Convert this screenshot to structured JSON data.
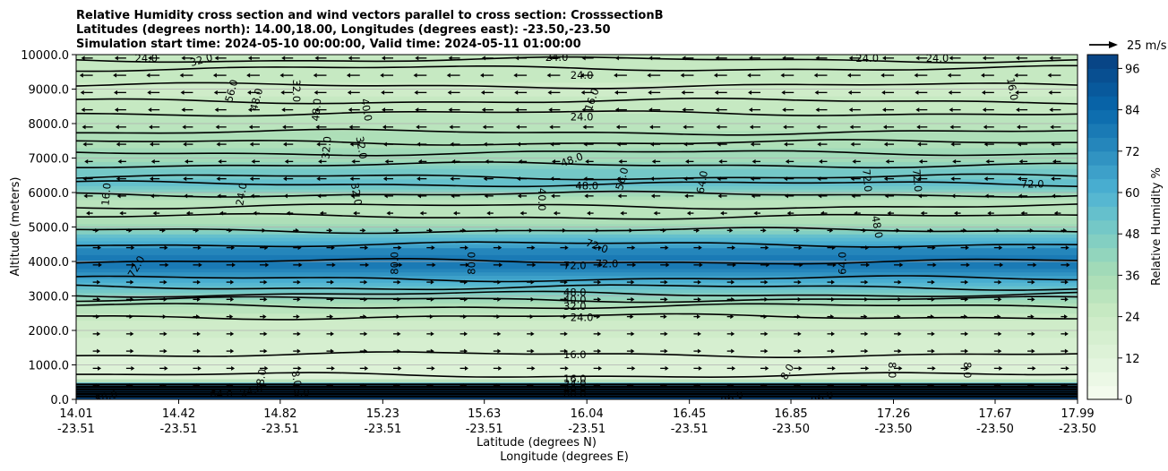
{
  "chart_data": {
    "type": "contour",
    "title_lines": [
      "Relative Humidity cross section and wind vectors parallel to cross section: CrosssectionB",
      "Latitudes (degrees north): 14.00,18.00, Longitudes (degrees east): -23.50,-23.50",
      "Simulation start time: 2024-05-10 00:00:00, Valid time: 2024-05-11 01:00:00"
    ],
    "ylabel": "Altitude (meters)",
    "xlabel_lat": "Latitude (degrees N)",
    "xlabel_lon": "Longitude (degrees E)",
    "ylim": [
      0,
      10000
    ],
    "y_ticks": [
      {
        "value": 0,
        "label": "0.0"
      },
      {
        "value": 1000,
        "label": "1000.0"
      },
      {
        "value": 2000,
        "label": "2000.0"
      },
      {
        "value": 3000,
        "label": "3000.0"
      },
      {
        "value": 4000,
        "label": "4000.0"
      },
      {
        "value": 5000,
        "label": "5000.0"
      },
      {
        "value": 6000,
        "label": "6000.0"
      },
      {
        "value": 7000,
        "label": "7000.0"
      },
      {
        "value": 8000,
        "label": "8000.0"
      },
      {
        "value": 9000,
        "label": "9000.0"
      },
      {
        "value": 10000,
        "label": "10000.0"
      }
    ],
    "x_range": [
      0,
      1
    ],
    "x_ticks": [
      {
        "pos": 0.0,
        "lat": "14.01",
        "lon": "-23.51"
      },
      {
        "pos": 0.1024,
        "lat": "14.42",
        "lon": "-23.51"
      },
      {
        "pos": 0.2038,
        "lat": "14.82",
        "lon": "-23.51"
      },
      {
        "pos": 0.3062,
        "lat": "15.23",
        "lon": "-23.51"
      },
      {
        "pos": 0.4076,
        "lat": "15.63",
        "lon": "-23.51"
      },
      {
        "pos": 0.51,
        "lat": "16.04",
        "lon": "-23.51"
      },
      {
        "pos": 0.6124,
        "lat": "16.45",
        "lon": "-23.51"
      },
      {
        "pos": 0.7138,
        "lat": "16.85",
        "lon": "-23.50"
      },
      {
        "pos": 0.8162,
        "lat": "17.26",
        "lon": "-23.50"
      },
      {
        "pos": 0.9177,
        "lat": "17.67",
        "lon": "-23.50"
      },
      {
        "pos": 1.0,
        "lat": "17.99",
        "lon": "-23.50"
      }
    ],
    "colorbar": {
      "label": "Relative Humidity %",
      "min": 0,
      "max": 100,
      "step": 4,
      "tick_values": [
        0,
        12,
        24,
        36,
        48,
        60,
        72,
        84,
        96
      ],
      "tick_labels": [
        "0",
        "12",
        "24",
        "36",
        "48",
        "60",
        "72",
        "84",
        "96"
      ]
    },
    "color_stops": [
      {
        "v": 0,
        "c": "#f7fcf0"
      },
      {
        "v": 12,
        "c": "#e0f3db"
      },
      {
        "v": 24,
        "c": "#ccebc5"
      },
      {
        "v": 36,
        "c": "#a8ddb5"
      },
      {
        "v": 48,
        "c": "#7bccc4"
      },
      {
        "v": 60,
        "c": "#4eb3d3"
      },
      {
        "v": 72,
        "c": "#2b8cbe"
      },
      {
        "v": 84,
        "c": "#0868ac"
      },
      {
        "v": 100,
        "c": "#084081"
      }
    ],
    "rh_profile": [
      {
        "alt": 0,
        "rh": 95
      },
      {
        "alt": 200,
        "rh": 93
      },
      {
        "alt": 400,
        "rh": 80
      },
      {
        "alt": 600,
        "rh": 14
      },
      {
        "alt": 1000,
        "rh": 14
      },
      {
        "alt": 1400,
        "rh": 17
      },
      {
        "alt": 2000,
        "rh": 22
      },
      {
        "alt": 2400,
        "rh": 25
      },
      {
        "alt": 2800,
        "rh": 34
      },
      {
        "alt": 3100,
        "rh": 46
      },
      {
        "alt": 3400,
        "rh": 62
      },
      {
        "alt": 3700,
        "rh": 72
      },
      {
        "alt": 4000,
        "rh": 80
      },
      {
        "alt": 4300,
        "rh": 75
      },
      {
        "alt": 4600,
        "rh": 60
      },
      {
        "alt": 5000,
        "rh": 40
      },
      {
        "alt": 5400,
        "rh": 28
      },
      {
        "alt": 5800,
        "rh": 30
      },
      {
        "alt": 6200,
        "rh": 55
      },
      {
        "alt": 6600,
        "rh": 50
      },
      {
        "alt": 7000,
        "rh": 38
      },
      {
        "alt": 7500,
        "rh": 34
      },
      {
        "alt": 8000,
        "rh": 30
      },
      {
        "alt": 8500,
        "rh": 26
      },
      {
        "alt": 9000,
        "rh": 22
      },
      {
        "alt": 9500,
        "rh": 26
      },
      {
        "alt": 10000,
        "rh": 28
      }
    ],
    "contour_lines": [
      {
        "alt": 9850,
        "label": "24.0"
      },
      {
        "alt": 9600,
        "label": "24.0"
      },
      {
        "alt": 9100,
        "label": "16.0"
      },
      {
        "alt": 8650,
        "label": "24.0"
      },
      {
        "alt": 8300,
        "label": "24.0"
      },
      {
        "alt": 7750,
        "label": "32.0"
      },
      {
        "alt": 7450,
        "label": "40.0"
      },
      {
        "alt": 7150,
        "label": "48.0"
      },
      {
        "alt": 6800,
        "label": "48.0"
      },
      {
        "alt": 6450,
        "label": "56.0"
      },
      {
        "alt": 6250,
        "label": "72.0"
      },
      {
        "alt": 5950,
        "label": "48.0"
      },
      {
        "alt": 5600,
        "label": "40.0"
      },
      {
        "alt": 5300,
        "label": "24.0"
      },
      {
        "alt": 4900,
        "label": "48.0"
      },
      {
        "alt": 4500,
        "label": "72.0"
      },
      {
        "alt": 4000,
        "label": "72.0"
      },
      {
        "alt": 3500,
        "label": "72.0"
      },
      {
        "alt": 3250,
        "label": "56.0"
      },
      {
        "alt": 3050,
        "label": "48.0"
      },
      {
        "alt": 2900,
        "label": "40.0"
      },
      {
        "alt": 2700,
        "label": "32.0"
      },
      {
        "alt": 2400,
        "label": "24.0"
      },
      {
        "alt": 1300,
        "label": "16.0"
      },
      {
        "alt": 700,
        "label": "16.0"
      }
    ],
    "contour_labels": [
      {
        "pos": 0.07,
        "alt": 9900,
        "text": "24.0",
        "rot": 0
      },
      {
        "pos": 0.125,
        "alt": 9850,
        "text": "32.0",
        "rot": -15
      },
      {
        "pos": 0.48,
        "alt": 9920,
        "text": "24.0",
        "rot": 0
      },
      {
        "pos": 0.79,
        "alt": 9900,
        "text": "24.0",
        "rot": 0
      },
      {
        "pos": 0.86,
        "alt": 9900,
        "text": "24.0",
        "rot": 0
      },
      {
        "pos": 0.505,
        "alt": 9400,
        "text": "24.0",
        "rot": 0
      },
      {
        "pos": 0.155,
        "alt": 8950,
        "text": "56.0",
        "rot": -75
      },
      {
        "pos": 0.18,
        "alt": 8700,
        "text": "48.0",
        "rot": -75
      },
      {
        "pos": 0.22,
        "alt": 8950,
        "text": "32.0",
        "rot": 90
      },
      {
        "pos": 0.24,
        "alt": 8400,
        "text": "48.0",
        "rot": -85
      },
      {
        "pos": 0.29,
        "alt": 8400,
        "text": "40.0",
        "rot": 80
      },
      {
        "pos": 0.515,
        "alt": 8700,
        "text": "16.0",
        "rot": -70
      },
      {
        "pos": 0.505,
        "alt": 8200,
        "text": "24.0",
        "rot": 0
      },
      {
        "pos": 0.935,
        "alt": 9000,
        "text": "16.0",
        "rot": 80
      },
      {
        "pos": 0.25,
        "alt": 7300,
        "text": "32.0",
        "rot": -85
      },
      {
        "pos": 0.285,
        "alt": 7300,
        "text": "32.0",
        "rot": 80
      },
      {
        "pos": 0.495,
        "alt": 6950,
        "text": "48.0",
        "rot": -20
      },
      {
        "pos": 0.51,
        "alt": 6200,
        "text": "48.0",
        "rot": 0
      },
      {
        "pos": 0.545,
        "alt": 6400,
        "text": "56.0",
        "rot": -75
      },
      {
        "pos": 0.625,
        "alt": 6300,
        "text": "64.0",
        "rot": -80
      },
      {
        "pos": 0.79,
        "alt": 6350,
        "text": "72.0",
        "rot": 85
      },
      {
        "pos": 0.84,
        "alt": 6350,
        "text": "72.0",
        "rot": 85
      },
      {
        "pos": 0.955,
        "alt": 6250,
        "text": "72.0",
        "rot": 0
      },
      {
        "pos": 0.03,
        "alt": 5950,
        "text": "16.0",
        "rot": -85
      },
      {
        "pos": 0.165,
        "alt": 5950,
        "text": "24.0",
        "rot": -80
      },
      {
        "pos": 0.28,
        "alt": 5950,
        "text": "32.0",
        "rot": 80
      },
      {
        "pos": 0.465,
        "alt": 5800,
        "text": "40.0",
        "rot": 90
      },
      {
        "pos": 0.8,
        "alt": 5000,
        "text": "48.0",
        "rot": 80
      },
      {
        "pos": 0.52,
        "alt": 4450,
        "text": "72.0",
        "rot": 20
      },
      {
        "pos": 0.06,
        "alt": 3850,
        "text": "72.0",
        "rot": -60
      },
      {
        "pos": 0.318,
        "alt": 3950,
        "text": "80.0",
        "rot": -90
      },
      {
        "pos": 0.395,
        "alt": 3950,
        "text": "80.0",
        "rot": -90
      },
      {
        "pos": 0.498,
        "alt": 3880,
        "text": "72.0",
        "rot": 0
      },
      {
        "pos": 0.53,
        "alt": 3930,
        "text": "72.0",
        "rot": 0
      },
      {
        "pos": 0.765,
        "alt": 3950,
        "text": "64.0",
        "rot": -90
      },
      {
        "pos": 0.498,
        "alt": 3100,
        "text": "48.0",
        "rot": 0
      },
      {
        "pos": 0.498,
        "alt": 2900,
        "text": "40.0",
        "rot": 0
      },
      {
        "pos": 0.498,
        "alt": 2700,
        "text": "32.0",
        "rot": 0
      },
      {
        "pos": 0.505,
        "alt": 2380,
        "text": "24.0",
        "rot": 0
      },
      {
        "pos": 0.498,
        "alt": 1300,
        "text": "16.0",
        "rot": 0
      },
      {
        "pos": 0.498,
        "alt": 600,
        "text": "16.0",
        "rot": 0
      },
      {
        "pos": 0.498,
        "alt": 450,
        "text": "24.0",
        "rot": 0
      },
      {
        "pos": 0.498,
        "alt": 300,
        "text": "40.0",
        "rot": 0
      },
      {
        "pos": 0.498,
        "alt": 150,
        "text": "80.0",
        "rot": 0
      },
      {
        "pos": 0.185,
        "alt": 650,
        "text": "8.0",
        "rot": -80
      },
      {
        "pos": 0.22,
        "alt": 600,
        "text": "8.0",
        "rot": 80
      },
      {
        "pos": 0.225,
        "alt": 200,
        "text": "8.0",
        "rot": 0
      },
      {
        "pos": 0.145,
        "alt": 150,
        "text": "64.0",
        "rot": 0
      },
      {
        "pos": 0.175,
        "alt": 250,
        "text": "24.0",
        "rot": -15
      },
      {
        "pos": 0.03,
        "alt": 80,
        "text": "88.0",
        "rot": -15
      },
      {
        "pos": 0.71,
        "alt": 800,
        "text": "8.0",
        "rot": -60
      },
      {
        "pos": 0.815,
        "alt": 850,
        "text": "8.0",
        "rot": 90
      },
      {
        "pos": 0.89,
        "alt": 850,
        "text": "8.0",
        "rot": 90
      },
      {
        "pos": 0.655,
        "alt": 50,
        "text": "96.0",
        "rot": -20
      },
      {
        "pos": 0.745,
        "alt": 50,
        "text": "96.0",
        "rot": -20
      }
    ],
    "wind_rows": [
      {
        "alt": 9900,
        "dir": -1,
        "mag": 10
      },
      {
        "alt": 9400,
        "dir": -1,
        "mag": 12
      },
      {
        "alt": 8900,
        "dir": -1,
        "mag": 11
      },
      {
        "alt": 8400,
        "dir": -1,
        "mag": 10
      },
      {
        "alt": 7900,
        "dir": -1,
        "mag": 9
      },
      {
        "alt": 7400,
        "dir": -1,
        "mag": 8
      },
      {
        "alt": 6900,
        "dir": -1,
        "mag": 6
      },
      {
        "alt": 6400,
        "dir": -1,
        "mag": 8
      },
      {
        "alt": 5900,
        "dir": -1,
        "mag": 7
      },
      {
        "alt": 5400,
        "dir": -1,
        "mag": 4
      },
      {
        "alt": 4900,
        "dir": 1,
        "mag": 3
      },
      {
        "alt": 4400,
        "dir": 1,
        "mag": 6
      },
      {
        "alt": 3900,
        "dir": 1,
        "mag": 7
      },
      {
        "alt": 3400,
        "dir": 1,
        "mag": 5
      },
      {
        "alt": 2900,
        "dir": 1,
        "mag": 5
      },
      {
        "alt": 2400,
        "dir": 1,
        "mag": 4
      },
      {
        "alt": 1900,
        "dir": 1,
        "mag": 5
      },
      {
        "alt": 1400,
        "dir": 1,
        "mag": 5
      },
      {
        "alt": 900,
        "dir": 1,
        "mag": 6
      },
      {
        "alt": 400,
        "dir": 1,
        "mag": 4
      }
    ],
    "quiver_key": {
      "label": "25 m/s",
      "speed": 25
    }
  }
}
